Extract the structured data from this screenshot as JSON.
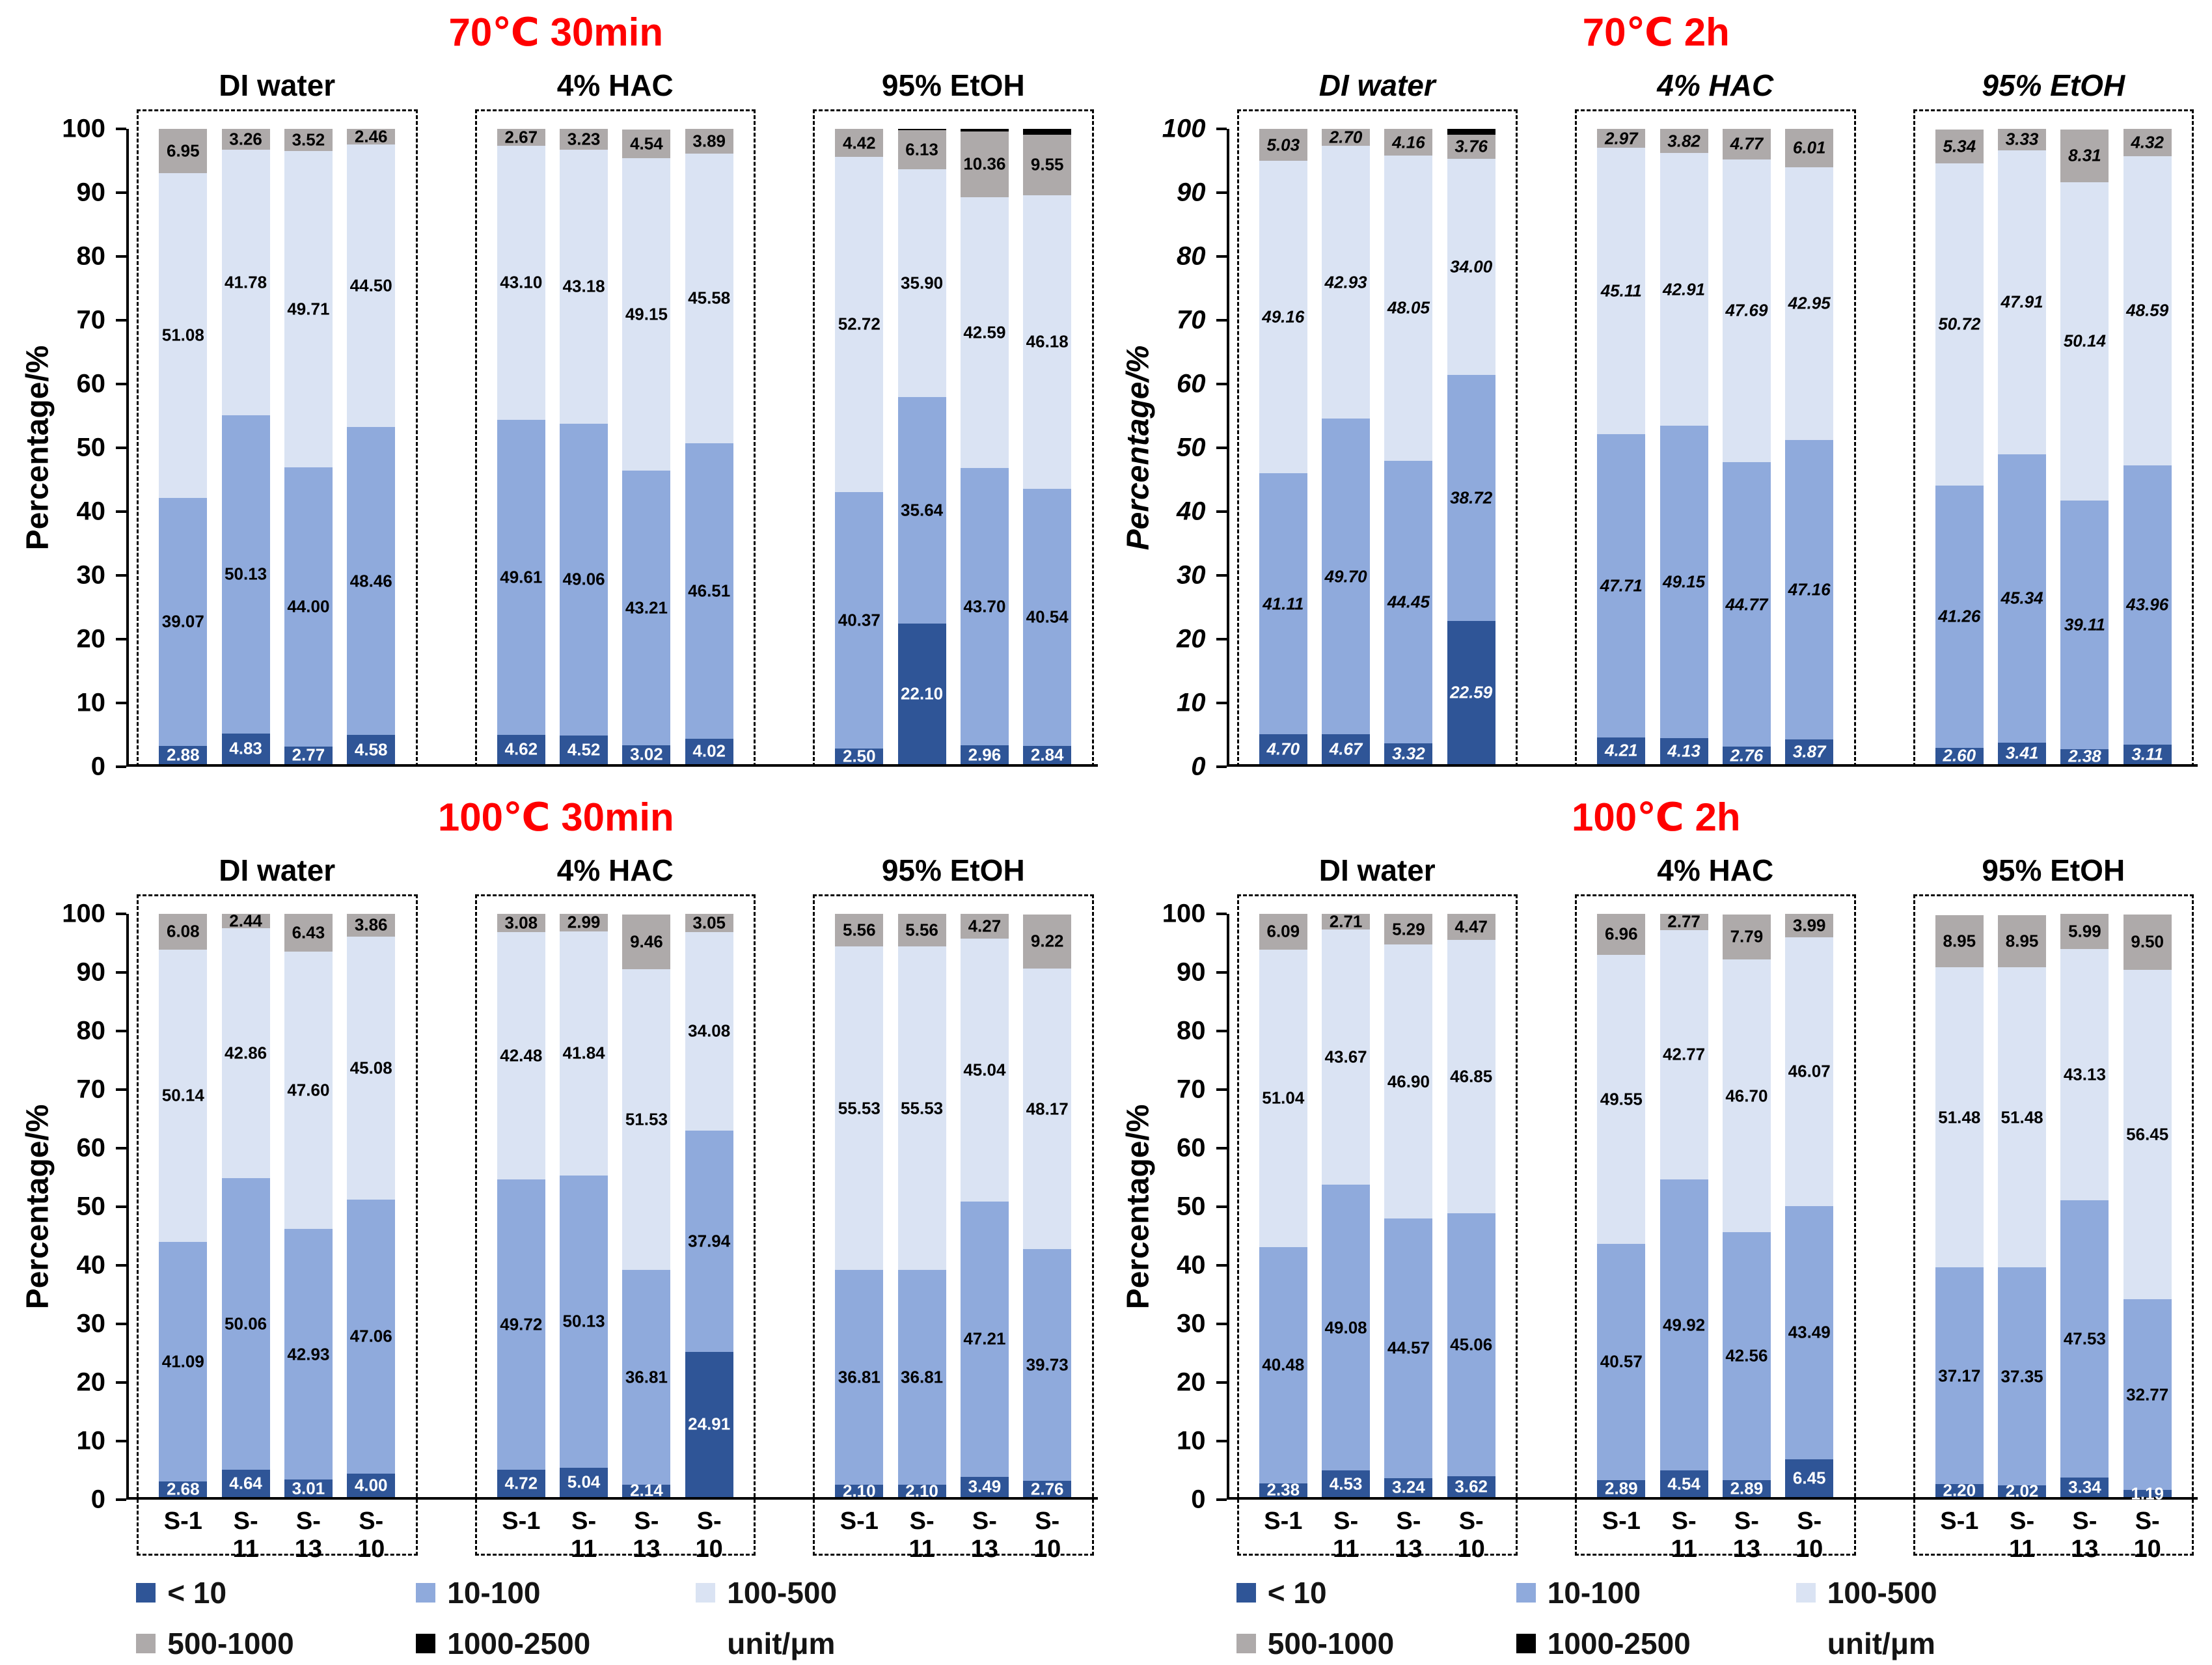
{
  "chart_data": {
    "type": "bar",
    "subtype": "stacked-percentage",
    "title_color": "#ff0000",
    "ylabel": "Percentage/%",
    "ylim": [
      0,
      100
    ],
    "yticks": [
      0,
      10,
      20,
      30,
      40,
      50,
      60,
      70,
      80,
      90,
      100
    ],
    "bar_labels": [
      "S-1",
      "S-11",
      "S-13",
      "S-10"
    ],
    "series": [
      {
        "name": "< 10",
        "color": "#2f5597"
      },
      {
        "name": "10-100",
        "color": "#8faadc"
      },
      {
        "name": "100-500",
        "color": "#dae3f3"
      },
      {
        "name": "500-1000",
        "color": "#aeaaaa"
      },
      {
        "name": "1000-2500",
        "color": "#000000"
      }
    ],
    "panels": [
      {
        "title": "70℃ 30min",
        "italic": false,
        "show_x_labels": false,
        "groups": [
          {
            "name": "DI water",
            "bars": [
              [
                2.88,
                39.07,
                51.08,
                6.95
              ],
              [
                4.83,
                50.13,
                41.78,
                3.26
              ],
              [
                2.77,
                44.0,
                49.71,
                3.52
              ],
              [
                4.58,
                48.46,
                44.5,
                2.46
              ]
            ]
          },
          {
            "name": "4% HAC",
            "bars": [
              [
                4.62,
                49.61,
                43.1,
                2.67
              ],
              [
                4.52,
                49.06,
                43.18,
                3.23
              ],
              [
                3.02,
                43.21,
                49.15,
                4.54
              ],
              [
                4.02,
                46.51,
                45.58,
                3.89
              ]
            ]
          },
          {
            "name": "95% EtOH",
            "bars": [
              [
                2.5,
                40.37,
                52.72,
                4.42
              ],
              [
                22.1,
                35.64,
                35.9,
                6.13,
                0.23
              ],
              [
                2.96,
                43.7,
                42.59,
                10.36,
                0.39
              ],
              [
                2.84,
                40.54,
                46.18,
                9.55,
                0.89
              ]
            ]
          }
        ]
      },
      {
        "title": "70℃ 2h",
        "italic": true,
        "show_x_labels": false,
        "groups": [
          {
            "name": "DI water",
            "bars": [
              [
                4.7,
                41.11,
                49.16,
                5.03
              ],
              [
                4.67,
                49.7,
                42.93,
                2.7
              ],
              [
                3.32,
                44.45,
                48.05,
                4.16
              ],
              [
                22.59,
                38.72,
                34.0,
                3.76,
                0.93
              ]
            ]
          },
          {
            "name": "4% HAC",
            "bars": [
              [
                4.21,
                47.71,
                45.11,
                2.97
              ],
              [
                4.13,
                49.15,
                42.91,
                3.82
              ],
              [
                2.76,
                44.77,
                47.69,
                4.77
              ],
              [
                3.87,
                47.16,
                42.95,
                6.01
              ]
            ]
          },
          {
            "name": "95% EtOH",
            "bars": [
              [
                2.6,
                41.26,
                50.72,
                5.34
              ],
              [
                3.41,
                45.34,
                47.91,
                3.33
              ],
              [
                2.38,
                39.11,
                50.14,
                8.31
              ],
              [
                3.11,
                43.96,
                48.59,
                4.32
              ]
            ]
          }
        ]
      },
      {
        "title": "100℃ 30min",
        "italic": false,
        "show_x_labels": true,
        "groups": [
          {
            "name": "DI water",
            "bars": [
              [
                2.68,
                41.09,
                50.14,
                6.08
              ],
              [
                4.64,
                50.06,
                42.86,
                2.44
              ],
              [
                3.01,
                42.93,
                47.6,
                6.43
              ],
              [
                4.0,
                47.06,
                45.08,
                3.86
              ]
            ]
          },
          {
            "name": "4% HAC",
            "bars": [
              [
                4.72,
                49.72,
                42.48,
                3.08
              ],
              [
                5.04,
                50.13,
                41.84,
                2.99
              ],
              [
                2.14,
                36.81,
                51.53,
                9.46
              ],
              [
                24.91,
                37.94,
                34.08,
                3.05
              ]
            ]
          },
          {
            "name": "95% EtOH",
            "bars": [
              [
                2.1,
                36.81,
                55.53,
                5.56
              ],
              [
                2.1,
                36.81,
                55.53,
                5.56
              ],
              [
                3.49,
                47.21,
                45.04,
                4.27
              ],
              [
                2.76,
                39.73,
                48.17,
                9.22
              ]
            ]
          }
        ]
      },
      {
        "title": "100℃ 2h",
        "italic": false,
        "show_x_labels": true,
        "groups": [
          {
            "name": "DI water",
            "bars": [
              [
                2.38,
                40.48,
                51.04,
                6.09
              ],
              [
                4.53,
                49.08,
                43.67,
                2.71
              ],
              [
                3.24,
                44.57,
                46.9,
                5.29
              ],
              [
                3.62,
                45.06,
                46.85,
                4.47
              ]
            ]
          },
          {
            "name": "4% HAC",
            "bars": [
              [
                2.89,
                40.57,
                49.55,
                6.96
              ],
              [
                4.54,
                49.92,
                42.77,
                2.77
              ],
              [
                2.89,
                42.56,
                46.7,
                7.79
              ],
              [
                6.45,
                43.49,
                46.07,
                3.99
              ]
            ]
          },
          {
            "name": "95% EtOH",
            "bars": [
              [
                2.2,
                37.17,
                51.48,
                8.95
              ],
              [
                2.02,
                37.35,
                51.48,
                8.95
              ],
              [
                3.34,
                47.53,
                43.13,
                5.99
              ],
              [
                1.19,
                32.77,
                56.45,
                9.5
              ]
            ]
          }
        ]
      }
    ]
  },
  "legend": {
    "items": [
      {
        "label": "< 10",
        "color": "#2f5597"
      },
      {
        "label": "10-100",
        "color": "#8faadc"
      },
      {
        "label": "100-500",
        "color": "#dae3f3"
      },
      {
        "label": "500-1000",
        "color": "#aeaaaa"
      },
      {
        "label": "1000-2500",
        "color": "#000000"
      },
      {
        "label": "unit/μm",
        "color": null
      }
    ]
  }
}
